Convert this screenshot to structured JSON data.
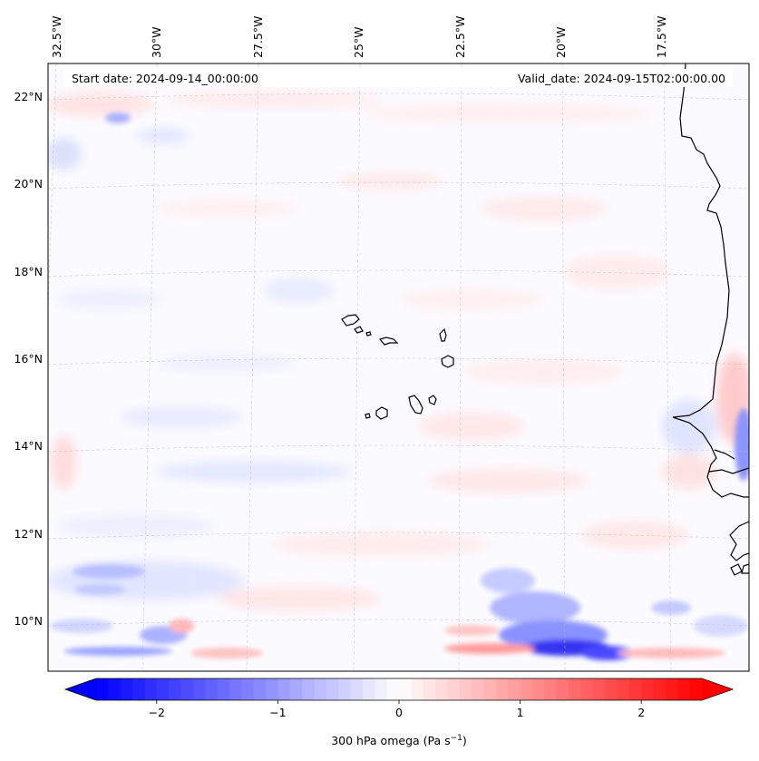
{
  "header": {
    "start_label": "Start date: 2024-09-14_00:00:00",
    "valid_label": "Valid_date: 2024-09-15T02:00:00.00"
  },
  "longitude_labels": [
    "32.5°W",
    "30°W",
    "27.5°W",
    "25°W",
    "22.5°W",
    "20°W",
    "17.5°W"
  ],
  "latitude_labels": [
    "22°N",
    "20°N",
    "18°N",
    "16°N",
    "14°N",
    "12°N",
    "10°N"
  ],
  "colorbar": {
    "label_prefix": "300 hPa omega (Pa s",
    "label_exponent": "−1",
    "label_suffix": ")",
    "tick_labels": [
      "−2",
      "−1",
      "0",
      "1",
      "2"
    ],
    "tick_values": [
      -2,
      -1,
      0,
      1,
      2
    ],
    "range": [
      -2.5,
      2.5
    ],
    "extend": "both",
    "colormap": "bwr",
    "colors": {
      "min": "#0000ff",
      "mid": "#ffffff",
      "max": "#ff0000"
    }
  },
  "map": {
    "projection": "Lambert conformal",
    "lon_range": [
      -33,
      -16
    ],
    "lat_range": [
      9,
      23
    ],
    "features": [
      "Cape Verde islands",
      "West African coastline (Senegal, Gambia, Guinea-Bissau)"
    ],
    "strong_ascent_region": "south-east, near 10°N 20°W",
    "colors": {
      "coast": "#000000",
      "gridline": "#bbbbbb",
      "blue_weak": "#e8e8ff",
      "blue_mid": "#aab0ff",
      "blue_strong": "#3030f0",
      "red_weak": "#ffecec",
      "red_mid": "#ffb8b8"
    }
  }
}
